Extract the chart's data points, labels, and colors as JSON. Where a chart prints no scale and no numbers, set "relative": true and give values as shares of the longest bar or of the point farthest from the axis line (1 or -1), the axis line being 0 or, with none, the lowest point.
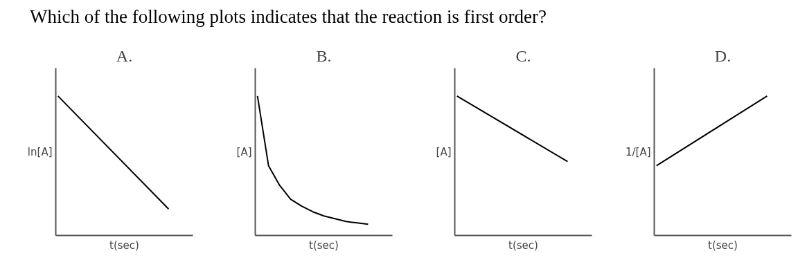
{
  "chart_data": [
    {
      "type": "line",
      "title": "A.",
      "ylabel": "ln[A]",
      "xlabel": "t(sec)",
      "relative": true,
      "categories": [
        null,
        null
      ],
      "values": [
        1,
        0.19
      ],
      "color": "#000000",
      "annotations": [
        "Which of the following plots indicates that the reaction is first order?"
      ]
    },
    {
      "type": "line",
      "title": "B.",
      "ylabel": "[A]",
      "xlabel": "t(sec)",
      "relative": true,
      "categories": [
        null,
        null,
        null,
        null,
        null,
        null,
        null,
        null,
        null,
        null,
        null
      ],
      "values": [
        1,
        0.5,
        0.36,
        0.26,
        0.21,
        0.17,
        0.14,
        0.12,
        0.1,
        0.09,
        0.08
      ],
      "color": "#000000"
    },
    {
      "type": "line",
      "title": "C.",
      "ylabel": "[A]",
      "xlabel": "t(sec)",
      "relative": true,
      "categories": [
        null,
        null
      ],
      "values": [
        1,
        0.53
      ],
      "color": "#000000"
    },
    {
      "type": "line",
      "title": "D.",
      "ylabel": "1/[A]",
      "xlabel": "t(sec)",
      "relative": true,
      "categories": [
        null,
        null
      ],
      "values": [
        0.5,
        1
      ],
      "color": "#000000"
    }
  ]
}
